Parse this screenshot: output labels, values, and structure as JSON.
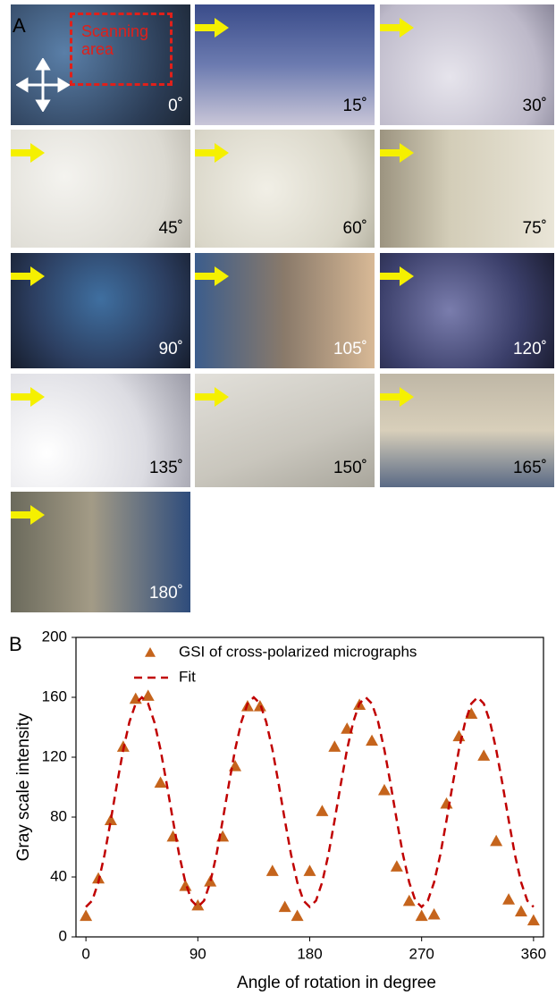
{
  "panel_a": {
    "label": "A",
    "scanning_label": "Scanning area",
    "images": [
      {
        "angle": "0˚"
      },
      {
        "angle": "15˚"
      },
      {
        "angle": "30˚"
      },
      {
        "angle": "45˚"
      },
      {
        "angle": "60˚"
      },
      {
        "angle": "75˚"
      },
      {
        "angle": "90˚"
      },
      {
        "angle": "105˚"
      },
      {
        "angle": "120˚"
      },
      {
        "angle": "135˚"
      },
      {
        "angle": "150˚"
      },
      {
        "angle": "165˚"
      },
      {
        "angle": "180˚"
      }
    ]
  },
  "chart_data": {
    "type": "scatter",
    "panel_label": "B",
    "x_label": "Angle of rotation in degree",
    "y_label": "Gray scale intensity",
    "xlim": [
      -8,
      368
    ],
    "ylim": [
      0,
      200
    ],
    "xticks": [
      0,
      90,
      180,
      270,
      360
    ],
    "yticks": [
      0,
      40,
      80,
      120,
      160,
      200
    ],
    "series": [
      {
        "name": "GSI of cross-polarized micrographs",
        "color": "#c5641c",
        "style": "triangle",
        "x": [
          0,
          10,
          20,
          30,
          40,
          50,
          60,
          70,
          80,
          90,
          100,
          110,
          120,
          130,
          140,
          150,
          160,
          170,
          180,
          190,
          200,
          210,
          220,
          230,
          240,
          250,
          260,
          270,
          280,
          290,
          300,
          310,
          320,
          330,
          340,
          350,
          360
        ],
        "values": [
          14,
          39,
          78,
          127,
          159,
          161,
          103,
          67,
          34,
          21,
          37,
          67,
          114,
          154,
          154,
          44,
          20,
          14,
          44,
          84,
          127,
          139,
          155,
          131,
          98,
          47,
          24,
          14,
          15,
          89,
          134,
          149,
          121,
          64,
          25,
          17,
          11
        ]
      },
      {
        "name": "Fit",
        "color": "#c00000",
        "style": "dashed",
        "x": [
          0,
          5,
          10,
          15,
          20,
          25,
          30,
          35,
          40,
          45,
          50,
          55,
          60,
          65,
          70,
          75,
          80,
          85,
          90,
          95,
          100,
          105,
          110,
          115,
          120,
          125,
          130,
          135,
          140,
          145,
          150,
          155,
          160,
          165,
          170,
          175,
          180,
          185,
          190,
          195,
          200,
          205,
          210,
          215,
          220,
          225,
          230,
          235,
          240,
          245,
          250,
          255,
          260,
          265,
          270,
          275,
          280,
          285,
          290,
          295,
          300,
          305,
          310,
          315,
          320,
          325,
          330,
          335,
          340,
          345,
          350,
          355,
          360
        ],
        "values": [
          20,
          24.2,
          36.4,
          55,
          77.8,
          102.2,
          125,
          143.6,
          155.8,
          160,
          155.8,
          143.6,
          125,
          102.2,
          77.8,
          55,
          36.4,
          24.2,
          20,
          24.2,
          36.4,
          55,
          77.8,
          102.2,
          125,
          143.6,
          155.8,
          160,
          155.8,
          143.6,
          125,
          102.2,
          77.8,
          55,
          36.4,
          24.2,
          20,
          24.2,
          36.4,
          55,
          77.8,
          102.2,
          125,
          143.6,
          155.8,
          160,
          155.8,
          143.6,
          125,
          102.2,
          77.8,
          55,
          36.4,
          24.2,
          20,
          24.2,
          36.4,
          55,
          77.8,
          102.2,
          125,
          143.6,
          155.8,
          160,
          155.8,
          143.6,
          125,
          102.2,
          77.8,
          55,
          36.4,
          24.2,
          20
        ]
      }
    ]
  }
}
